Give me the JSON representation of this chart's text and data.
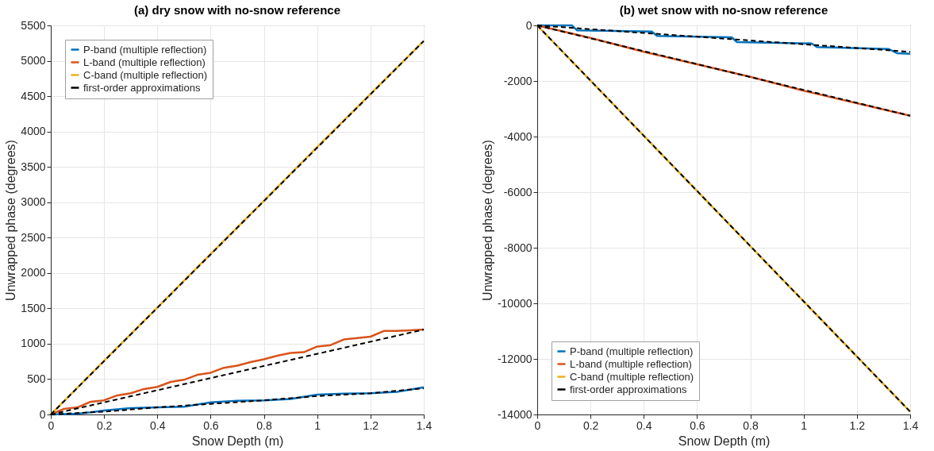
{
  "chart_data": [
    {
      "type": "line",
      "title": "(a) dry snow with no-snow reference",
      "xlabel": "Snow Depth (m)",
      "ylabel": "Unwrapped phase (degrees)",
      "xlim": [
        0,
        1.4
      ],
      "ylim": [
        0,
        5500
      ],
      "xticks": [
        0,
        0.2,
        0.4,
        0.6,
        0.8,
        1,
        1.2,
        1.4
      ],
      "yticks": [
        0,
        500,
        1000,
        1500,
        2000,
        2500,
        3000,
        3500,
        4000,
        4500,
        5000,
        5500
      ],
      "grid": true,
      "legend": "top left",
      "marker": "none",
      "series": [
        {
          "name": "P-band (multiple reflection)",
          "color": "#0072bd",
          "line_style": "solid",
          "x": [
            0,
            0.1,
            0.15,
            0.2,
            0.3,
            0.4,
            0.5,
            0.6,
            0.7,
            0.8,
            0.9,
            1.0,
            1.1,
            1.2,
            1.3,
            1.4
          ],
          "values": [
            0,
            10,
            30,
            55,
            90,
            100,
            110,
            170,
            195,
            200,
            220,
            280,
            295,
            300,
            320,
            385
          ]
        },
        {
          "name": "L-band (multiple reflection)",
          "color": "#d95319",
          "line_style": "solid",
          "x": [
            0,
            0.05,
            0.1,
            0.15,
            0.2,
            0.25,
            0.3,
            0.35,
            0.4,
            0.45,
            0.5,
            0.55,
            0.6,
            0.65,
            0.7,
            0.75,
            0.8,
            0.85,
            0.9,
            0.95,
            1.0,
            1.05,
            1.1,
            1.15,
            1.2,
            1.25,
            1.3,
            1.35,
            1.4
          ],
          "values": [
            0,
            80,
            100,
            180,
            200,
            270,
            300,
            360,
            390,
            460,
            490,
            560,
            590,
            660,
            690,
            740,
            780,
            830,
            870,
            880,
            960,
            980,
            1060,
            1080,
            1100,
            1180,
            1180,
            1190,
            1200
          ]
        },
        {
          "name": "C-band (multiple reflection)",
          "color": "#edb120",
          "line_style": "solid",
          "x": [
            0,
            0.2,
            0.4,
            0.6,
            0.8,
            1.0,
            1.2,
            1.4
          ],
          "values": [
            0,
            760,
            1510,
            2270,
            3020,
            3780,
            4530,
            5280
          ]
        },
        {
          "name": "first-order approximations",
          "color": "#000000",
          "line_style": "dashed",
          "x": [
            0,
            0.2,
            0.4,
            0.6,
            0.8,
            1.0,
            1.2,
            1.4
          ],
          "values": [
            0,
            40,
            100,
            150,
            200,
            260,
            300,
            370
          ]
        },
        {
          "color": "#000000",
          "line_style": "dashed",
          "x": [
            0,
            1.4
          ],
          "values": [
            0,
            1200
          ]
        },
        {
          "color": "#000000",
          "line_style": "dashed",
          "x": [
            0,
            1.4
          ],
          "values": [
            0,
            5280
          ]
        }
      ]
    },
    {
      "type": "line",
      "title": "(b) wet snow with no-snow reference",
      "xlabel": "Snow Depth (m)",
      "ylabel": "Unwrapped phase (degrees)",
      "xlim": [
        0,
        1.4
      ],
      "ylim": [
        -14000,
        0
      ],
      "xticks": [
        0,
        0.2,
        0.4,
        0.6,
        0.8,
        1,
        1.2,
        1.4
      ],
      "yticks": [
        -14000,
        -12000,
        -10000,
        -8000,
        -6000,
        -4000,
        -2000,
        0
      ],
      "grid": true,
      "legend": "bottom left",
      "marker": "none",
      "series": [
        {
          "name": "P-band (multiple reflection)",
          "color": "#0072bd",
          "line_style": "solid",
          "x": [
            0,
            0.13,
            0.15,
            0.43,
            0.45,
            0.73,
            0.75,
            1.03,
            1.05,
            1.32,
            1.35,
            1.4
          ],
          "values": [
            0,
            0,
            -180,
            -220,
            -380,
            -430,
            -600,
            -650,
            -780,
            -850,
            -1000,
            -1020
          ]
        },
        {
          "name": "L-band (multiple reflection)",
          "color": "#d95319",
          "line_style": "solid",
          "x": [
            0,
            0.2,
            0.4,
            0.6,
            0.8,
            1.0,
            1.2,
            1.4
          ],
          "values": [
            0,
            -450,
            -950,
            -1400,
            -1850,
            -2350,
            -2800,
            -3250
          ]
        },
        {
          "name": "C-band (multiple reflection)",
          "color": "#edb120",
          "line_style": "solid",
          "x": [
            0,
            1.4
          ],
          "values": [
            0,
            -13900
          ]
        },
        {
          "name": "first-order approximations",
          "color": "#000000",
          "line_style": "dashed",
          "x": [
            0,
            1.4
          ],
          "values": [
            0,
            -950
          ]
        },
        {
          "color": "#000000",
          "line_style": "dashed",
          "x": [
            0,
            1.4
          ],
          "values": [
            0,
            -3250
          ]
        },
        {
          "color": "#000000",
          "line_style": "dashed",
          "x": [
            0,
            1.4
          ],
          "values": [
            0,
            -13900
          ]
        }
      ]
    }
  ]
}
